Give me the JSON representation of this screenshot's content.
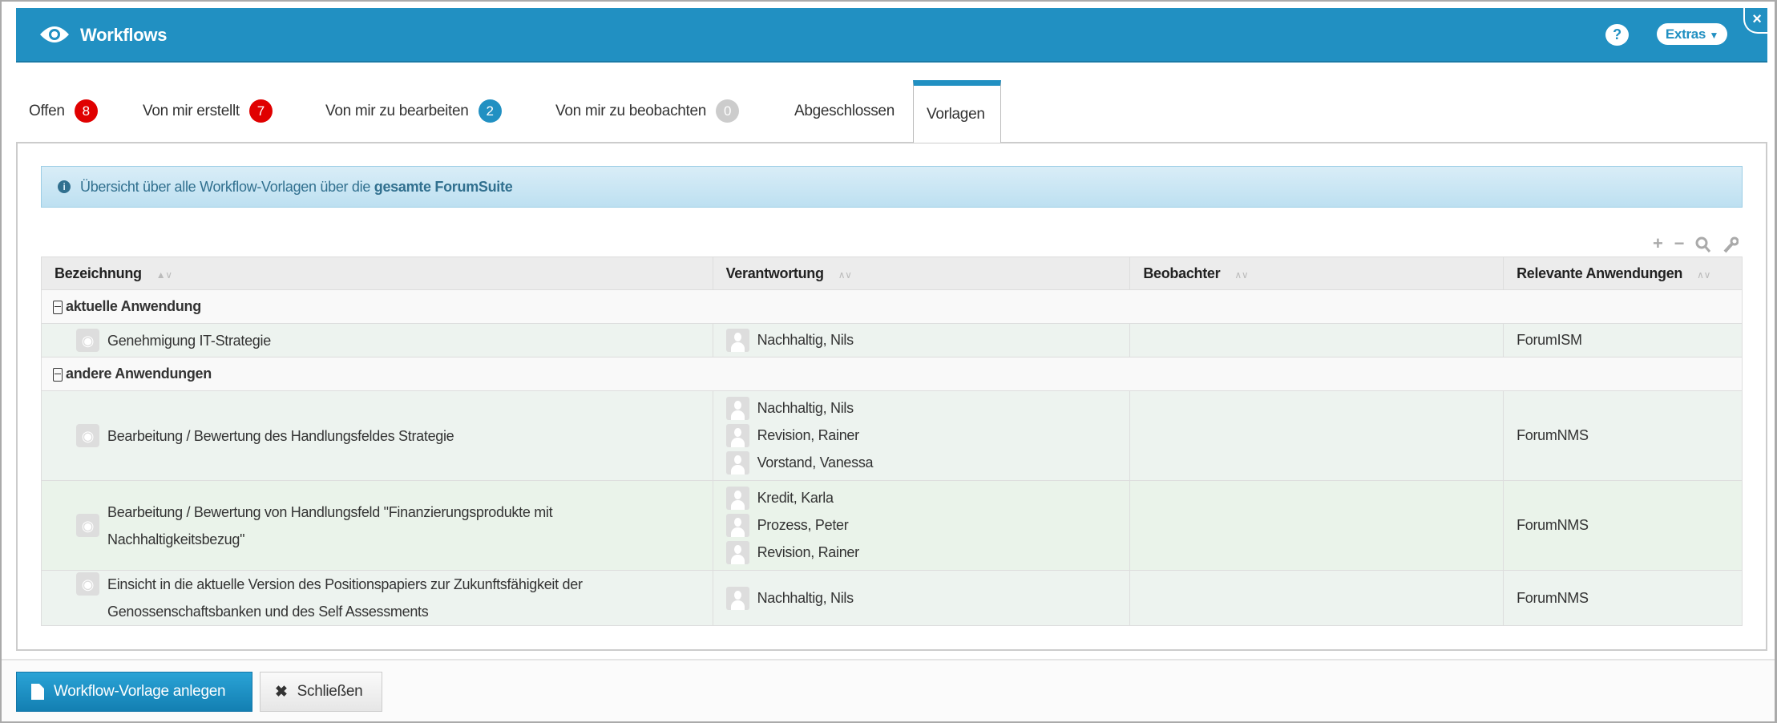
{
  "header": {
    "title": "Workflows",
    "help_label": "?",
    "extras_label": "Extras",
    "close_label": "×"
  },
  "tabs": [
    {
      "label": "Offen",
      "count": "8",
      "color": "#e00000"
    },
    {
      "label": "Von mir erstellt",
      "count": "7",
      "color": "#e00000"
    },
    {
      "label": "Von mir zu bearbeiten",
      "count": "2",
      "color": "#2190c2"
    },
    {
      "label": "Von mir zu beobachten",
      "count": "0",
      "color": "#cccccc"
    },
    {
      "label": "Abgeschlossen"
    },
    {
      "label": "Vorlagen",
      "active": true
    }
  ],
  "info": {
    "text": "Übersicht über alle Workflow-Vorlagen über die ",
    "strong": "gesamte ForumSuite"
  },
  "toolbar": {
    "add": "+",
    "remove": "−",
    "search": "search-icon",
    "settings": "wrench-icon"
  },
  "table": {
    "columns": [
      "Bezeichnung",
      "Verantwortung",
      "Beobachter",
      "Relevante Anwendungen"
    ],
    "groups": [
      {
        "label": "aktuelle Anwendung",
        "rows": [
          {
            "name": "Genehmigung IT-Strategie",
            "responsible": [
              "Nachhaltig, Nils"
            ],
            "observers": "",
            "apps": "ForumISM"
          }
        ]
      },
      {
        "label": "andere Anwendungen",
        "rows": [
          {
            "name": "Bearbeitung / Bewertung des Handlungsfeldes Strategie",
            "responsible": [
              "Nachhaltig, Nils",
              "Revision, Rainer",
              "Vorstand, Vanessa"
            ],
            "observers": "",
            "apps": "ForumNMS"
          },
          {
            "name": "Bearbeitung / Bewertung von Handlungsfeld \"Finanzierungsprodukte mit Nachhaltigkeitsbezug\"",
            "responsible": [
              "Kredit, Karla",
              "Prozess, Peter",
              "Revision, Rainer"
            ],
            "observers": "",
            "apps": "ForumNMS"
          },
          {
            "name": "Einsicht in die aktuelle Version des Positionspapiers zur Zukunftsfähigkeit der Genossenschaftsbanken und des Self Assessments",
            "responsible": [
              "Nachhaltig, Nils"
            ],
            "observers": "",
            "apps": "ForumNMS"
          }
        ]
      }
    ]
  },
  "footer": {
    "create_label": "Workflow-Vorlage anlegen",
    "close_label": "Schließen"
  }
}
